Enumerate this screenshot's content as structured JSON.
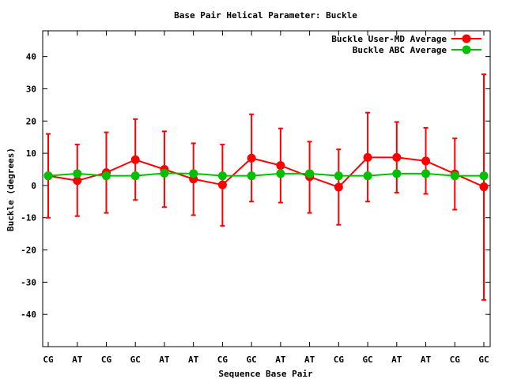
{
  "chart_data": {
    "type": "line",
    "title": "Base Pair Helical Parameter: Buckle",
    "xlabel": "Sequence Base Pair",
    "ylabel": "Buckle (degrees)",
    "ylim": [
      -50,
      48
    ],
    "yticks": [
      -40,
      -30,
      -20,
      -10,
      0,
      10,
      20,
      30,
      40
    ],
    "categories": [
      "CG",
      "AT",
      "CG",
      "GC",
      "AT",
      "AT",
      "CG",
      "GC",
      "AT",
      "AT",
      "CG",
      "GC",
      "AT",
      "AT",
      "CG",
      "GC"
    ],
    "legend_position": "top-right",
    "grid": false,
    "series": [
      {
        "name": "Buckle User-MD Average",
        "color": "#ff0000",
        "values": [
          3.0,
          1.5,
          4.0,
          8.0,
          5.0,
          2.0,
          0.2,
          8.5,
          6.2,
          2.7,
          -0.5,
          8.7,
          8.7,
          7.6,
          3.6,
          -0.4
        ],
        "error_low": [
          -10,
          -9.5,
          -8.5,
          -4.5,
          -6.7,
          -9.2,
          -12.5,
          -5,
          -5.3,
          -8.5,
          -12.2,
          -5,
          -2.2,
          -2.6,
          -7.5,
          -35.5
        ],
        "error_high": [
          16,
          12.7,
          16.5,
          20.6,
          16.8,
          13.1,
          12.7,
          22.1,
          17.7,
          13.6,
          11.2,
          22.6,
          19.7,
          17.9,
          14.6,
          34.5
        ]
      },
      {
        "name": "Buckle ABC Average",
        "color": "#00c000",
        "values": [
          3.0,
          3.7,
          3.0,
          3.0,
          3.8,
          3.7,
          3.0,
          3.0,
          3.7,
          3.7,
          3.0,
          3.0,
          3.7,
          3.7,
          3.0,
          3.0
        ]
      }
    ]
  }
}
